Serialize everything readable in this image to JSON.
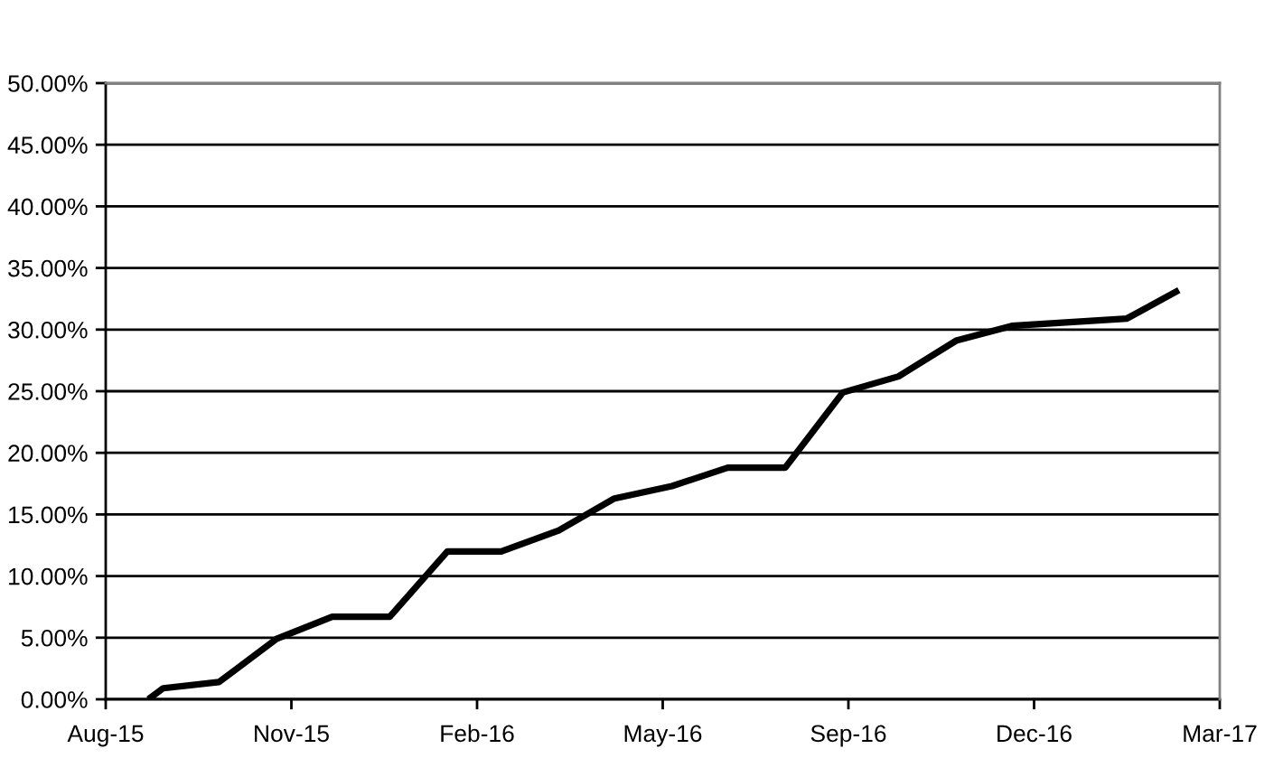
{
  "chart_data": {
    "type": "line",
    "x": [
      "2015-08-24",
      "2015-09-01",
      "2015-10-01",
      "2015-11-01",
      "2015-12-01",
      "2016-01-01",
      "2016-02-01",
      "2016-03-01",
      "2016-04-01",
      "2016-05-01",
      "2016-06-01",
      "2016-07-01",
      "2016-08-01",
      "2016-09-01",
      "2016-10-01",
      "2016-11-01",
      "2016-12-01",
      "2017-01-01",
      "2017-02-01",
      "2017-03-01"
    ],
    "values": [
      0,
      0.9,
      1.4,
      4.9,
      6.7,
      6.7,
      12.0,
      12.0,
      13.7,
      16.3,
      17.3,
      18.8,
      18.8,
      24.9,
      26.2,
      29.1,
      30.3,
      30.6,
      30.9,
      33.2
    ],
    "color": "#000000",
    "marker": "none",
    "line_style": "solid",
    "xlim": [
      "2015-08-01",
      "2017-03-23"
    ],
    "xticks": [
      {
        "value": "2015-08-01",
        "label": "Aug-15"
      },
      {
        "value": "2015-11-09",
        "label": "Nov-15"
      },
      {
        "value": "2016-02-17",
        "label": "Feb-16"
      },
      {
        "value": "2016-05-27",
        "label": "May-16"
      },
      {
        "value": "2016-09-04",
        "label": "Sep-16"
      },
      {
        "value": "2016-12-13",
        "label": "Dec-16"
      },
      {
        "value": "2017-03-23",
        "label": "Mar-17"
      }
    ],
    "ylim": [
      0,
      50
    ],
    "yticks": [
      {
        "value": 0,
        "label": "0.00%"
      },
      {
        "value": 5,
        "label": "5.00%"
      },
      {
        "value": 10,
        "label": "10.00%"
      },
      {
        "value": 15,
        "label": "15.00%"
      },
      {
        "value": 20,
        "label": "20.00%"
      },
      {
        "value": 25,
        "label": "25.00%"
      },
      {
        "value": 30,
        "label": "30.00%"
      },
      {
        "value": 35,
        "label": "35.00%"
      },
      {
        "value": 40,
        "label": "40.00%"
      },
      {
        "value": 45,
        "label": "45.00%"
      },
      {
        "value": 50,
        "label": "50.00%"
      }
    ],
    "grid": "y"
  }
}
